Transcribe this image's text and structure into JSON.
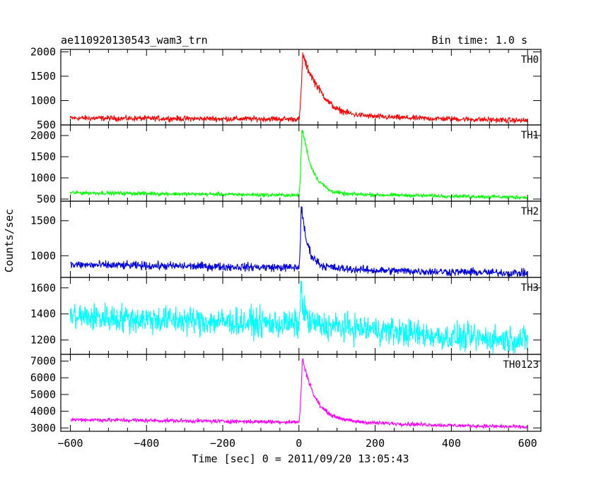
{
  "chart_data": {
    "type": "line",
    "title": "ae110920130543_wam3_trn",
    "bin_time": "Bin time: 1.0 s",
    "xlabel": "Time [sec] 0 = 2011/09/20 13:05:43",
    "ylabel": "Counts/sec",
    "xlim": [
      -625,
      635
    ],
    "xticks": [
      -600,
      -400,
      -200,
      0,
      200,
      400,
      600
    ],
    "xtick_labels": [
      "−600",
      "−400",
      "−200",
      "0",
      "200",
      "400",
      "600"
    ],
    "panels": [
      {
        "name": "TH0",
        "color": "#ff0000",
        "ylim": [
          500,
          2050
        ],
        "yticks": [
          500,
          1000,
          1500,
          2000
        ],
        "ytick_labels": [
          "500",
          "1000",
          "1500",
          "2000"
        ],
        "pre_start": 640,
        "pre_end": 620,
        "noise": 28,
        "peak": 1950,
        "peak_time": 10,
        "decay": [
          [
            10,
            1950
          ],
          [
            20,
            1700
          ],
          [
            40,
            1400
          ],
          [
            60,
            1150
          ],
          [
            80,
            950
          ],
          [
            100,
            820
          ],
          [
            140,
            720
          ],
          [
            200,
            670
          ],
          [
            300,
            640
          ],
          [
            600,
            590
          ]
        ]
      },
      {
        "name": "TH1",
        "color": "#00ff00",
        "ylim": [
          450,
          2250
        ],
        "yticks": [
          500,
          1000,
          1500,
          2000
        ],
        "ytick_labels": [
          "500",
          "1000",
          "1500",
          "2000"
        ],
        "pre_start": 650,
        "pre_end": 590,
        "noise": 22,
        "peak": 2150,
        "peak_time": 8,
        "decay": [
          [
            8,
            2150
          ],
          [
            15,
            1900
          ],
          [
            30,
            1300
          ],
          [
            50,
            950
          ],
          [
            80,
            700
          ],
          [
            120,
            620
          ],
          [
            200,
            600
          ],
          [
            400,
            570
          ],
          [
            600,
            540
          ]
        ]
      },
      {
        "name": "TH2",
        "color": "#0000dd",
        "ylim": [
          690,
          1780
        ],
        "yticks": [
          1000,
          1500
        ],
        "ytick_labels": [
          "1000",
          "1500"
        ],
        "pre_start": 870,
        "pre_end": 830,
        "noise": 30,
        "peak": 1700,
        "peak_time": 6,
        "decay": [
          [
            6,
            1700
          ],
          [
            12,
            1450
          ],
          [
            20,
            1200
          ],
          [
            35,
            980
          ],
          [
            60,
            860
          ],
          [
            100,
            820
          ],
          [
            200,
            790
          ],
          [
            400,
            770
          ],
          [
            600,
            750
          ]
        ]
      },
      {
        "name": "TH3",
        "color": "#00ffff",
        "ylim": [
          1090,
          1680
        ],
        "yticks": [
          1200,
          1400,
          1600
        ],
        "ytick_labels": [
          "1200",
          "1400",
          "1600"
        ],
        "pre_start": 1380,
        "pre_end": 1320,
        "noise": 55,
        "peak": 1590,
        "peak_time": 5,
        "decay": [
          [
            5,
            1590
          ],
          [
            12,
            1440
          ],
          [
            25,
            1340
          ],
          [
            60,
            1310
          ],
          [
            200,
            1280
          ],
          [
            400,
            1220
          ],
          [
            600,
            1200
          ]
        ]
      },
      {
        "name": "TH0123",
        "color": "#ff00ff",
        "ylim": [
          2800,
          7400
        ],
        "yticks": [
          3000,
          4000,
          5000,
          6000,
          7000
        ],
        "ytick_labels": [
          "3000",
          "4000",
          "5000",
          "6000",
          "7000"
        ],
        "pre_start": 3500,
        "pre_end": 3350,
        "noise": 60,
        "peak": 7150,
        "peak_time": 9,
        "decay": [
          [
            9,
            7150
          ],
          [
            20,
            6200
          ],
          [
            40,
            4900
          ],
          [
            60,
            4200
          ],
          [
            90,
            3700
          ],
          [
            140,
            3400
          ],
          [
            200,
            3300
          ],
          [
            400,
            3150
          ],
          [
            600,
            3050
          ]
        ]
      }
    ]
  }
}
